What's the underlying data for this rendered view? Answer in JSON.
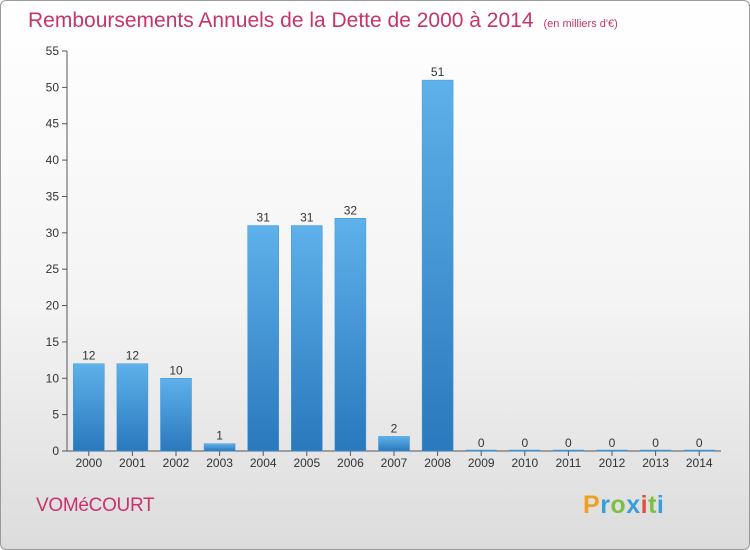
{
  "header": {
    "title": "Remboursements Annuels de la Dette de 2000 à 2014",
    "unit": "(en milliers d'€)"
  },
  "footer": {
    "commune": "VOMéCOURT",
    "logo": {
      "letters": [
        "P",
        "r",
        "o",
        "x",
        "i",
        "t",
        "i"
      ],
      "colors": [
        "#f0a020",
        "#3a9fd6",
        "#7bc043",
        "#3a9fd6",
        "#e05040",
        "#7bc043",
        "#3a9fd6"
      ]
    }
  },
  "chart_data": {
    "type": "bar",
    "title": "Remboursements Annuels de la Dette de 2000 à 2014",
    "xlabel": "",
    "ylabel": "",
    "categories": [
      "2000",
      "2001",
      "2002",
      "2003",
      "2004",
      "2005",
      "2006",
      "2007",
      "2008",
      "2009",
      "2010",
      "2011",
      "2012",
      "2013",
      "2014"
    ],
    "values": [
      12,
      12,
      10,
      1,
      31,
      31,
      32,
      2,
      51,
      0,
      0,
      0,
      0,
      0,
      0
    ],
    "ylim": [
      0,
      55
    ],
    "yticks": [
      0,
      5,
      10,
      15,
      20,
      25,
      30,
      35,
      40,
      45,
      50,
      55
    ],
    "grid": false,
    "bar_color": "#3e95d8",
    "bar_color_light": "#5eb1ea",
    "bar_color_dark": "#2a78bd"
  }
}
